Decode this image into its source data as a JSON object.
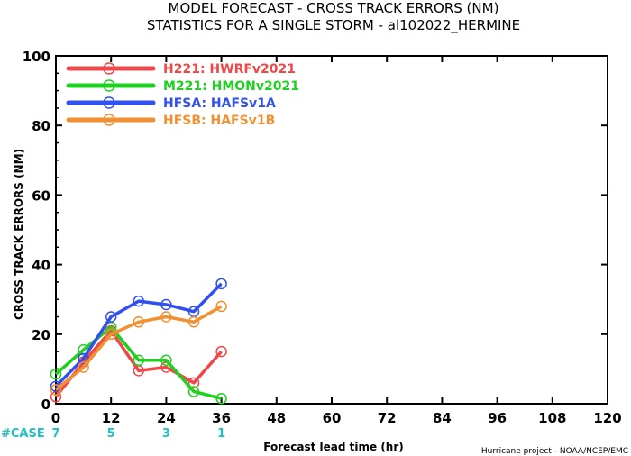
{
  "chart_data": {
    "type": "line",
    "title": "MODEL FORECAST - CROSS TRACK ERRORS (NM)",
    "subtitle": "STATISTICS FOR A SINGLE STORM - al102022_HERMINE",
    "xlabel": "Forecast lead time (hr)",
    "ylabel": "CROSS TRACK ERRORS (NM)",
    "xlim": [
      0,
      120
    ],
    "ylim": [
      0,
      100
    ],
    "x_ticks": [
      "0",
      "12",
      "24",
      "36",
      "48",
      "60",
      "72",
      "84",
      "96",
      "108",
      "120"
    ],
    "y_ticks": [
      "0",
      "20",
      "40",
      "60",
      "80",
      "100"
    ],
    "grid": false,
    "legend_position": "top-left",
    "series": [
      {
        "name": "H221: HWRFv2021",
        "color": "#f04848",
        "x": [
          0,
          6,
          12,
          18,
          24,
          30,
          36
        ],
        "values": [
          2,
          12,
          21,
          9.5,
          10.5,
          6,
          15
        ]
      },
      {
        "name": "M221: HMONv2021",
        "color": "#20d020",
        "x": [
          0,
          6,
          12,
          18,
          24,
          30,
          36
        ],
        "values": [
          8.5,
          15.5,
          22,
          12.5,
          12.5,
          3.5,
          1.5
        ]
      },
      {
        "name": "HFSA: HAFSv1A",
        "color": "#3050f0",
        "x": [
          0,
          6,
          12,
          18,
          24,
          30,
          36
        ],
        "values": [
          5,
          13,
          25,
          29.5,
          28.5,
          26.5,
          34.5
        ]
      },
      {
        "name": "HFSB: HAFSv1B",
        "color": "#f09030",
        "x": [
          0,
          6,
          12,
          18,
          24,
          30,
          36
        ],
        "values": [
          4,
          10.5,
          20,
          23.5,
          25,
          23.5,
          28
        ]
      }
    ],
    "case_label": "#CASE",
    "cases": [
      {
        "x": 0,
        "label": "7"
      },
      {
        "x": 12,
        "label": "5"
      },
      {
        "x": 24,
        "label": "3"
      },
      {
        "x": 36,
        "label": "1"
      }
    ],
    "credit": "Hurricane project - NOAA/NCEP/EMC"
  }
}
